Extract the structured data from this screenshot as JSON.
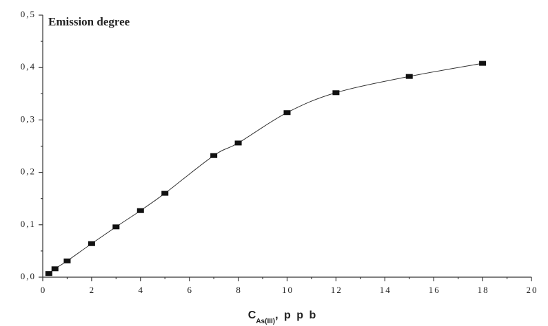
{
  "chart_data": {
    "type": "scatter",
    "title": "Emission degree",
    "x_label": {
      "main": "C",
      "sub": "As(III)",
      "unit": ", p p b"
    },
    "x": [
      0.25,
      0.5,
      1,
      2,
      3,
      4,
      5,
      7,
      8,
      10,
      12,
      15,
      18
    ],
    "values": [
      0.007,
      0.016,
      0.031,
      0.064,
      0.096,
      0.127,
      0.16,
      0.232,
      0.256,
      0.314,
      0.352,
      0.383,
      0.408
    ],
    "color": "#111111",
    "xlim": [
      0,
      20
    ],
    "ylim": [
      0,
      0.5
    ],
    "xticks": [
      0,
      2,
      4,
      6,
      8,
      10,
      12,
      14,
      16,
      18,
      20
    ],
    "xminorticks": [
      1,
      3,
      5,
      7,
      9,
      11,
      13,
      15,
      17,
      19
    ],
    "yticks": [
      {
        "value": 0,
        "label": "0,0"
      },
      {
        "value": 0.1,
        "label": "0,1"
      },
      {
        "value": 0.2,
        "label": "0,2"
      },
      {
        "value": 0.3,
        "label": "0,3"
      },
      {
        "value": 0.4,
        "label": "0,4"
      },
      {
        "value": 0.5,
        "label": "0,5"
      }
    ],
    "yminorticks": [
      0.05,
      0.15,
      0.25,
      0.35,
      0.45
    ],
    "smooth_line": true
  }
}
